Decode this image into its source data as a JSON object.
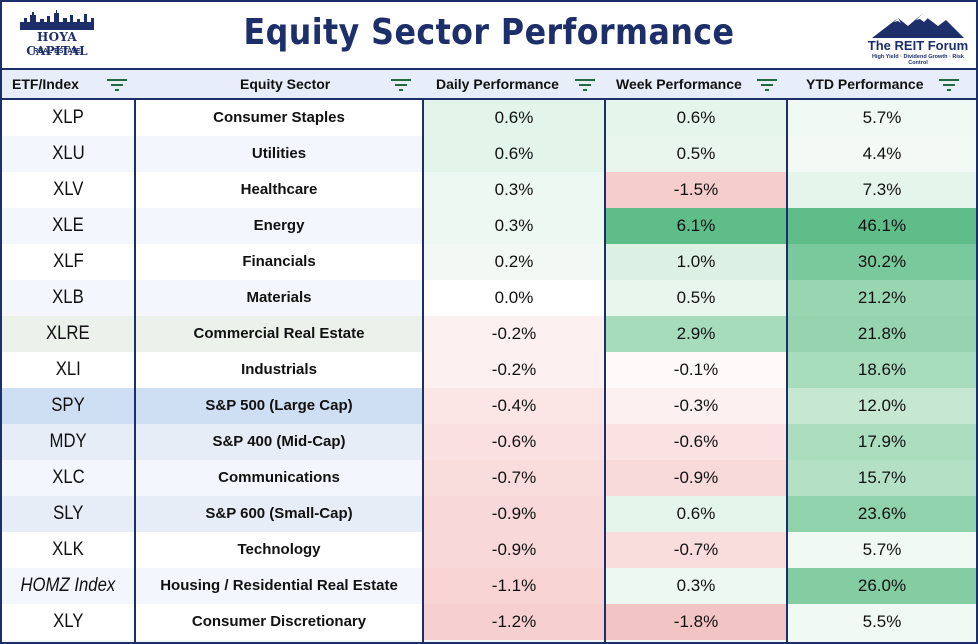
{
  "header": {
    "title": "Equity Sector Performance",
    "left_logo": {
      "line1": "HOYA CAPITAL",
      "line2": "REAL ESTATE"
    },
    "right_logo": {
      "name": "The REIT Forum",
      "tagline": "High Yield · Dividend Growth · Risk Control"
    }
  },
  "columns": [
    {
      "label": "ETF/Index",
      "filter_icon": "filter-icon"
    },
    {
      "label": "Equity Sector",
      "filter_icon": "filter-icon"
    },
    {
      "label": "Daily Performance",
      "filter_icon": "filter-icon"
    },
    {
      "label": "Week Performance",
      "filter_icon": "filter-icon"
    },
    {
      "label": "YTD Performance",
      "filter_icon": "filter-icon"
    }
  ],
  "rows": [
    {
      "etf": "XLP",
      "sector": "Consumer Staples",
      "daily": "0.6%",
      "week": "0.6%",
      "ytd": "5.7%",
      "etf_bg": "#ffffff",
      "sector_bg": "#ffffff",
      "daily_bg": "#e3f4ea",
      "week_bg": "#e6f5ec",
      "ytd_bg": "#f0f9f3"
    },
    {
      "etf": "XLU",
      "sector": "Utilities",
      "daily": "0.6%",
      "week": "0.5%",
      "ytd": "4.4%",
      "etf_bg": "#f3f7fd",
      "sector_bg": "#f3f7fd",
      "daily_bg": "#e3f4ea",
      "week_bg": "#e9f6ee",
      "ytd_bg": "#f3faf5"
    },
    {
      "etf": "XLV",
      "sector": "Healthcare",
      "daily": "0.3%",
      "week": "-1.5%",
      "ytd": "7.3%",
      "etf_bg": "#ffffff",
      "sector_bg": "#ffffff",
      "daily_bg": "#eef8f2",
      "week_bg": "#f6cdcd",
      "ytd_bg": "#e6f5ec"
    },
    {
      "etf": "XLE",
      "sector": "Energy",
      "daily": "0.3%",
      "week": "6.1%",
      "ytd": "46.1%",
      "etf_bg": "#f3f7fd",
      "sector_bg": "#f3f7fd",
      "daily_bg": "#eef8f2",
      "week_bg": "#5fbd89",
      "ytd_bg": "#5fbd89"
    },
    {
      "etf": "XLF",
      "sector": "Financials",
      "daily": "0.2%",
      "week": "1.0%",
      "ytd": "30.2%",
      "etf_bg": "#ffffff",
      "sector_bg": "#ffffff",
      "daily_bg": "#f2f9f5",
      "week_bg": "#dcf0e3",
      "ytd_bg": "#7ac99c"
    },
    {
      "etf": "XLB",
      "sector": "Materials",
      "daily": "0.0%",
      "week": "0.5%",
      "ytd": "21.2%",
      "etf_bg": "#f3f7fd",
      "sector_bg": "#f3f7fd",
      "daily_bg": "#ffffff",
      "week_bg": "#e9f6ee",
      "ytd_bg": "#98d5b1"
    },
    {
      "etf": "XLRE",
      "sector": "Commercial Real Estate",
      "daily": "-0.2%",
      "week": "2.9%",
      "ytd": "21.8%",
      "etf_bg": "#eaf2ea",
      "sector_bg": "#eaf2ea",
      "daily_bg": "#fdf0f0",
      "week_bg": "#a6dbbc",
      "ytd_bg": "#95d4af"
    },
    {
      "etf": "XLI",
      "sector": "Industrials",
      "daily": "-0.2%",
      "week": "-0.1%",
      "ytd": "18.6%",
      "etf_bg": "#ffffff",
      "sector_bg": "#ffffff",
      "daily_bg": "#fdf0f0",
      "week_bg": "#fefafa",
      "ytd_bg": "#a7dcbd"
    },
    {
      "etf": "SPY",
      "sector": "S&P 500 (Large Cap)",
      "daily": "-0.4%",
      "week": "-0.3%",
      "ytd": "12.0%",
      "etf_bg": "#cfdff3",
      "sector_bg": "#cfdff3",
      "daily_bg": "#fbe5e5",
      "week_bg": "#fdf0f0",
      "ytd_bg": "#c6e8d3"
    },
    {
      "etf": "MDY",
      "sector": "S&P 400 (Mid-Cap)",
      "daily": "-0.6%",
      "week": "-0.6%",
      "ytd": "17.9%",
      "etf_bg": "#e6edf7",
      "sector_bg": "#e6edf7",
      "daily_bg": "#fae0e0",
      "week_bg": "#fae2e2",
      "ytd_bg": "#aadebf"
    },
    {
      "etf": "XLC",
      "sector": "Communications",
      "daily": "-0.7%",
      "week": "-0.9%",
      "ytd": "15.7%",
      "etf_bg": "#f3f7fd",
      "sector_bg": "#f3f7fd",
      "daily_bg": "#f9dddd",
      "week_bg": "#f8dada",
      "ytd_bg": "#b4e1c6"
    },
    {
      "etf": "SLY",
      "sector": "S&P 600 (Small-Cap)",
      "daily": "-0.9%",
      "week": "0.6%",
      "ytd": "23.6%",
      "etf_bg": "#e6edf7",
      "sector_bg": "#e6edf7",
      "daily_bg": "#f8d8d8",
      "week_bg": "#e6f5ec",
      "ytd_bg": "#8fd2ab"
    },
    {
      "etf": "XLK",
      "sector": "Technology",
      "daily": "-0.9%",
      "week": "-0.7%",
      "ytd": "5.7%",
      "etf_bg": "#ffffff",
      "sector_bg": "#ffffff",
      "daily_bg": "#f8d8d8",
      "week_bg": "#f9dddd",
      "ytd_bg": "#f0f9f3"
    },
    {
      "etf": "HOMZ Index",
      "sector": "Housing / Residential Real Estate",
      "daily": "-1.1%",
      "week": "0.3%",
      "ytd": "26.0%",
      "etf_bg": "#f3f7fd",
      "sector_bg": "#f3f7fd",
      "daily_bg": "#f7d3d3",
      "week_bg": "#eef8f2",
      "ytd_bg": "#84cda3",
      "etf_italic": true
    },
    {
      "etf": "XLY",
      "sector": "Consumer Discretionary",
      "daily": "-1.2%",
      "week": "-1.8%",
      "ytd": "5.5%",
      "etf_bg": "#ffffff",
      "sector_bg": "#ffffff",
      "daily_bg": "#f6d0d0",
      "week_bg": "#f3c4c4",
      "ytd_bg": "#f1f9f4"
    }
  ]
}
